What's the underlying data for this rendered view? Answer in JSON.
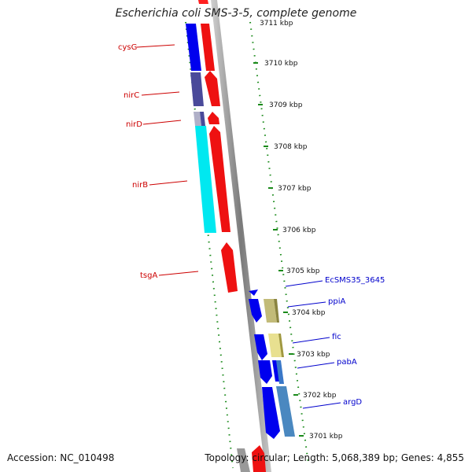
{
  "title": "Escherichia coli SMS-3-5, complete genome",
  "accession": "Accession: NC_010498",
  "topology": "Topology: circular; Length: 5,068,389 bp; Genes: 4,855",
  "scale": {
    "top_partial": "3711 kbp",
    "labels": [
      "3710 kbp",
      "3709 kbp",
      "3708 kbp",
      "3707 kbp",
      "3706 kbp",
      "3705 kbp",
      "3704 kbp",
      "3703 kbp",
      "3702 kbp",
      "3701 kbp"
    ]
  },
  "genes_reverse": [
    "cysG",
    "nirC",
    "nirD",
    "nirB",
    "tsgA"
  ],
  "genes_forward": [
    "EcSMS35_3645",
    "ppiA",
    "fic",
    "pabA",
    "argD"
  ],
  "colors": {
    "reverse_strand": "#ff0000",
    "forward_strand": "#0000ff",
    "cysG": "#0000ee",
    "nirC": "#4a4a9a",
    "nirD": "#b0b0c8",
    "nirB": "#00e8f0",
    "ppiA": "#c2bb78",
    "fic": "#e8e090",
    "pabA": "#3a78c8",
    "argD": "#4a88c0",
    "tick": "#1a8a1a",
    "backbone": "#8a8a8a"
  }
}
